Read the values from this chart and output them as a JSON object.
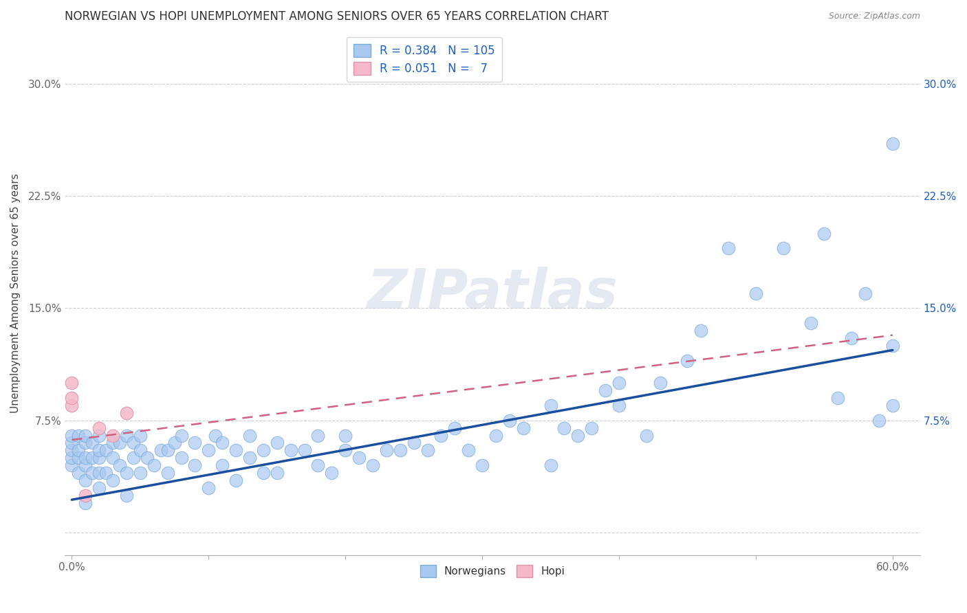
{
  "title": "NORWEGIAN VS HOPI UNEMPLOYMENT AMONG SENIORS OVER 65 YEARS CORRELATION CHART",
  "source": "Source: ZipAtlas.com",
  "xlabel": "",
  "ylabel": "Unemployment Among Seniors over 65 years",
  "xlim": [
    -0.005,
    0.62
  ],
  "ylim": [
    -0.015,
    0.335
  ],
  "xtick_positions": [
    0.0,
    0.1,
    0.2,
    0.3,
    0.4,
    0.5,
    0.6
  ],
  "xticklabels_show": [
    "0.0%",
    "",
    "",
    "",
    "",
    "",
    "60.0%"
  ],
  "ytick_positions": [
    0.0,
    0.075,
    0.15,
    0.225,
    0.3
  ],
  "yticklabels_left": [
    "",
    "7.5%",
    "15.0%",
    "22.5%",
    "30.0%"
  ],
  "yticklabels_right": [
    "",
    "7.5%",
    "15.0%",
    "22.5%",
    "30.0%"
  ],
  "norwegian_color": "#a8c8f0",
  "norwegian_edge_color": "#7aaad8",
  "norwegian_line_color": "#1a4fa0",
  "hopi_color": "#f4b8c8",
  "hopi_edge_color": "#e090a8",
  "hopi_line_color": "#d06080",
  "legend_r_color": "#2060c0",
  "background_color": "#ffffff",
  "grid_color": "#c8c8c8",
  "watermark": "ZIPatlas",
  "norwegian_R": 0.384,
  "norwegian_N": 105,
  "hopi_R": 0.051,
  "hopi_N": 7,
  "norw_line_x0": 0.0,
  "norw_line_y0": 0.022,
  "norw_line_x1": 0.6,
  "norw_line_y1": 0.122,
  "hopi_line_x0": 0.0,
  "hopi_line_y0": 0.062,
  "hopi_line_x1": 0.6,
  "hopi_line_y1": 0.132,
  "norwegian_x": [
    0.0,
    0.0,
    0.0,
    0.0,
    0.0,
    0.005,
    0.005,
    0.005,
    0.005,
    0.01,
    0.01,
    0.01,
    0.01,
    0.01,
    0.01,
    0.015,
    0.015,
    0.015,
    0.02,
    0.02,
    0.02,
    0.02,
    0.02,
    0.025,
    0.025,
    0.03,
    0.03,
    0.03,
    0.035,
    0.035,
    0.04,
    0.04,
    0.04,
    0.045,
    0.045,
    0.05,
    0.05,
    0.05,
    0.055,
    0.06,
    0.065,
    0.07,
    0.07,
    0.075,
    0.08,
    0.08,
    0.09,
    0.09,
    0.1,
    0.1,
    0.105,
    0.11,
    0.11,
    0.12,
    0.12,
    0.13,
    0.13,
    0.14,
    0.14,
    0.15,
    0.15,
    0.16,
    0.17,
    0.18,
    0.18,
    0.19,
    0.2,
    0.2,
    0.21,
    0.22,
    0.23,
    0.24,
    0.25,
    0.26,
    0.27,
    0.28,
    0.29,
    0.3,
    0.31,
    0.32,
    0.33,
    0.35,
    0.35,
    0.36,
    0.37,
    0.38,
    0.39,
    0.4,
    0.4,
    0.42,
    0.43,
    0.45,
    0.46,
    0.48,
    0.5,
    0.52,
    0.54,
    0.55,
    0.56,
    0.57,
    0.58,
    0.59,
    0.6,
    0.6,
    0.6
  ],
  "norwegian_y": [
    0.045,
    0.05,
    0.055,
    0.06,
    0.065,
    0.04,
    0.05,
    0.055,
    0.065,
    0.02,
    0.035,
    0.045,
    0.05,
    0.06,
    0.065,
    0.04,
    0.05,
    0.06,
    0.03,
    0.04,
    0.05,
    0.055,
    0.065,
    0.04,
    0.055,
    0.035,
    0.05,
    0.06,
    0.045,
    0.06,
    0.025,
    0.04,
    0.065,
    0.05,
    0.06,
    0.04,
    0.055,
    0.065,
    0.05,
    0.045,
    0.055,
    0.04,
    0.055,
    0.06,
    0.05,
    0.065,
    0.045,
    0.06,
    0.03,
    0.055,
    0.065,
    0.045,
    0.06,
    0.035,
    0.055,
    0.05,
    0.065,
    0.04,
    0.055,
    0.04,
    0.06,
    0.055,
    0.055,
    0.045,
    0.065,
    0.04,
    0.055,
    0.065,
    0.05,
    0.045,
    0.055,
    0.055,
    0.06,
    0.055,
    0.065,
    0.07,
    0.055,
    0.045,
    0.065,
    0.075,
    0.07,
    0.045,
    0.085,
    0.07,
    0.065,
    0.07,
    0.095,
    0.085,
    0.1,
    0.065,
    0.1,
    0.115,
    0.135,
    0.19,
    0.16,
    0.19,
    0.14,
    0.2,
    0.09,
    0.13,
    0.16,
    0.075,
    0.085,
    0.125,
    0.26
  ],
  "hopi_x": [
    0.0,
    0.0,
    0.0,
    0.01,
    0.02,
    0.03,
    0.04
  ],
  "hopi_y": [
    0.085,
    0.09,
    0.1,
    0.025,
    0.07,
    0.065,
    0.08
  ]
}
